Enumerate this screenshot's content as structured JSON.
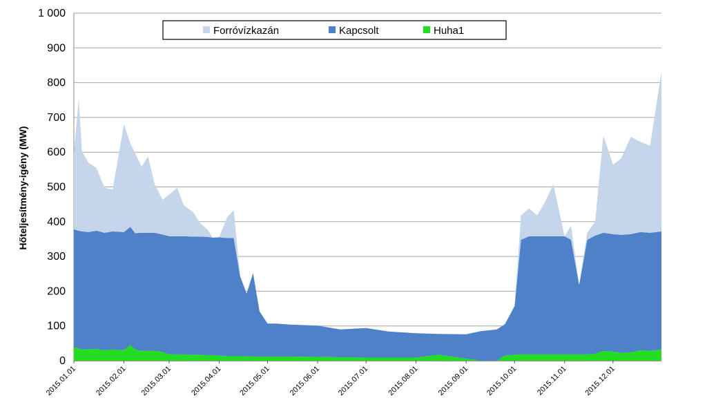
{
  "chart_data": {
    "type": "area",
    "stacked": true,
    "ylabel": "Hőteljesítmény-igény (MW)",
    "xlabel": "",
    "ylim": [
      0,
      1000
    ],
    "yticks": [
      0,
      100,
      200,
      300,
      400,
      500,
      600,
      700,
      800,
      900,
      1000
    ],
    "ytick_labels": [
      "0",
      "100",
      "200",
      "300",
      "400",
      "500",
      "600",
      "700",
      "800",
      "900",
      "1 000"
    ],
    "x_tick_labels": [
      "2015.01.01",
      "2015.02.01",
      "2015.03.01",
      "2015.04.01",
      "2015.05.01",
      "2015.06.01",
      "2015.07.01",
      "2015.08.01",
      "2015.09.01",
      "2015.10.01",
      "2015.11.01",
      "2015.12.01"
    ],
    "grid": "horizontal",
    "legend_position": "top-center",
    "x": [
      "2015.01.01",
      "2015.01.04",
      "2015.01.06",
      "2015.01.10",
      "2015.01.15",
      "2015.01.20",
      "2015.01.25",
      "2015.02.01",
      "2015.02.05",
      "2015.02.08",
      "2015.02.12",
      "2015.02.16",
      "2015.02.20",
      "2015.02.25",
      "2015.03.01",
      "2015.03.06",
      "2015.03.10",
      "2015.03.16",
      "2015.03.20",
      "2015.03.25",
      "2015.03.28",
      "2015.04.01",
      "2015.04.06",
      "2015.04.10",
      "2015.04.14",
      "2015.04.18",
      "2015.04.22",
      "2015.04.26",
      "2015.05.01",
      "2015.05.06",
      "2015.05.15",
      "2015.06.01",
      "2015.06.15",
      "2015.07.01",
      "2015.07.15",
      "2015.08.01",
      "2015.08.15",
      "2015.09.01",
      "2015.09.10",
      "2015.09.20",
      "2015.09.25",
      "2015.10.01",
      "2015.10.05",
      "2015.10.10",
      "2015.10.15",
      "2015.10.20",
      "2015.10.25",
      "2015.11.01",
      "2015.11.05",
      "2015.11.10",
      "2015.11.15",
      "2015.11.20",
      "2015.11.25",
      "2015.12.01",
      "2015.12.06",
      "2015.12.12",
      "2015.12.18",
      "2015.12.24",
      "2015.12.31"
    ],
    "series": [
      {
        "name": "Huha1",
        "color": "#22dd22",
        "values": [
          38,
          36,
          32,
          33,
          34,
          30,
          32,
          30,
          45,
          32,
          28,
          28,
          28,
          25,
          18,
          18,
          18,
          17,
          17,
          16,
          16,
          15,
          13,
          13,
          13,
          13,
          12,
          12,
          12,
          12,
          12,
          11,
          10,
          9,
          9,
          9,
          17,
          6,
          0,
          0,
          15,
          17,
          18,
          18,
          18,
          18,
          18,
          18,
          18,
          18,
          18,
          20,
          28,
          26,
          22,
          24,
          30,
          28,
          32
        ]
      },
      {
        "name": "Kapcsolt",
        "color": "#4f81c9",
        "values": [
          340,
          338,
          340,
          337,
          340,
          338,
          340,
          340,
          340,
          335,
          340,
          340,
          340,
          338,
          340,
          340,
          340,
          340,
          340,
          340,
          338,
          340,
          340,
          340,
          230,
          180,
          240,
          130,
          95,
          95,
          92,
          90,
          80,
          85,
          75,
          70,
          60,
          70,
          85,
          90,
          90,
          140,
          330,
          340,
          340,
          340,
          340,
          340,
          330,
          200,
          330,
          340,
          340,
          338,
          340,
          340,
          340,
          340,
          340
        ]
      },
      {
        "name": "Forróvízkazán",
        "color": "#c5d5ea",
        "values": [
          220,
          380,
          230,
          200,
          180,
          130,
          120,
          310,
          240,
          230,
          190,
          220,
          140,
          100,
          120,
          140,
          90,
          70,
          40,
          20,
          0,
          0,
          60,
          80,
          0,
          0,
          0,
          0,
          0,
          0,
          0,
          0,
          0,
          0,
          0,
          0,
          0,
          0,
          0,
          0,
          0,
          0,
          70,
          80,
          60,
          100,
          150,
          0,
          40,
          0,
          20,
          40,
          280,
          200,
          220,
          280,
          260,
          250,
          460
        ]
      }
    ],
    "legend_order": [
      "Forróvízkazán",
      "Kapcsolt",
      "Huha1"
    ]
  }
}
